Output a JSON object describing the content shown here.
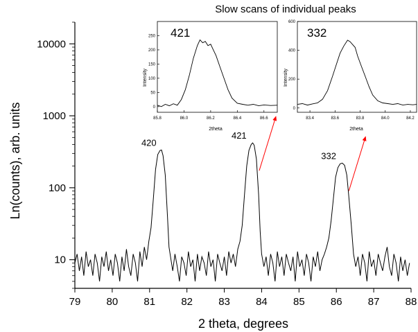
{
  "chart_data": [
    {
      "type": "line",
      "title": "Slow scans of individual peaks",
      "xlabel": "2 theta, degrees",
      "ylabel": "Ln(counts), arb. units",
      "yscale": "log",
      "xlim": [
        79,
        88
      ],
      "ylim": [
        4,
        20000
      ],
      "xticks": [
        "79",
        "80",
        "81",
        "82",
        "83",
        "84",
        "85",
        "86",
        "87",
        "88"
      ],
      "yticks": [
        {
          "value": 10,
          "label": "10"
        },
        {
          "value": 100,
          "label": "100"
        },
        {
          "value": 1000,
          "label": "1000"
        },
        {
          "value": 10000,
          "label": "10000"
        }
      ],
      "grid": false,
      "series": [
        {
          "color": "#000000",
          "points": [
            [
              79.0,
              9
            ],
            [
              79.06,
              12
            ],
            [
              79.12,
              7
            ],
            [
              79.18,
              11
            ],
            [
              79.24,
              6
            ],
            [
              79.3,
              13
            ],
            [
              79.36,
              8
            ],
            [
              79.42,
              10
            ],
            [
              79.48,
              6
            ],
            [
              79.54,
              12
            ],
            [
              79.6,
              9
            ],
            [
              79.66,
              5
            ],
            [
              79.72,
              11
            ],
            [
              79.78,
              8
            ],
            [
              79.84,
              13
            ],
            [
              79.9,
              7
            ],
            [
              79.96,
              10
            ],
            [
              80.02,
              6
            ],
            [
              80.08,
              12
            ],
            [
              80.14,
              9
            ],
            [
              80.2,
              5
            ],
            [
              80.26,
              11
            ],
            [
              80.32,
              7
            ],
            [
              80.38,
              14
            ],
            [
              80.44,
              8
            ],
            [
              80.5,
              6
            ],
            [
              80.56,
              12
            ],
            [
              80.62,
              9
            ],
            [
              80.68,
              5
            ],
            [
              80.74,
              13
            ],
            [
              80.8,
              8
            ],
            [
              80.86,
              15
            ],
            [
              80.92,
              10
            ],
            [
              80.98,
              18
            ],
            [
              81.04,
              28
            ],
            [
              81.1,
              70
            ],
            [
              81.16,
              180
            ],
            [
              81.22,
              290
            ],
            [
              81.28,
              330
            ],
            [
              81.32,
              335
            ],
            [
              81.36,
              280
            ],
            [
              81.42,
              150
            ],
            [
              81.48,
              40
            ],
            [
              81.52,
              15
            ],
            [
              81.56,
              11
            ],
            [
              81.62,
              7
            ],
            [
              81.68,
              12
            ],
            [
              81.74,
              8
            ],
            [
              81.8,
              5
            ],
            [
              81.86,
              11
            ],
            [
              81.92,
              9
            ],
            [
              81.98,
              6
            ],
            [
              82.04,
              13
            ],
            [
              82.1,
              8
            ],
            [
              82.16,
              10
            ],
            [
              82.22,
              5
            ],
            [
              82.28,
              12
            ],
            [
              82.34,
              7
            ],
            [
              82.4,
              11
            ],
            [
              82.46,
              9
            ],
            [
              82.52,
              6
            ],
            [
              82.58,
              13
            ],
            [
              82.64,
              8
            ],
            [
              82.7,
              10
            ],
            [
              82.76,
              5
            ],
            [
              82.82,
              12
            ],
            [
              82.88,
              9
            ],
            [
              82.94,
              7
            ],
            [
              83.0,
              11
            ],
            [
              83.06,
              6
            ],
            [
              83.12,
              13
            ],
            [
              83.18,
              9
            ],
            [
              83.24,
              12
            ],
            [
              83.3,
              8
            ],
            [
              83.36,
              14
            ],
            [
              83.42,
              18
            ],
            [
              83.48,
              30
            ],
            [
              83.54,
              80
            ],
            [
              83.6,
              200
            ],
            [
              83.66,
              330
            ],
            [
              83.72,
              400
            ],
            [
              83.76,
              420
            ],
            [
              83.8,
              390
            ],
            [
              83.86,
              250
            ],
            [
              83.92,
              80
            ],
            [
              83.96,
              25
            ],
            [
              84.0,
              12
            ],
            [
              84.06,
              8
            ],
            [
              84.12,
              11
            ],
            [
              84.18,
              6
            ],
            [
              84.24,
              12
            ],
            [
              84.3,
              9
            ],
            [
              84.36,
              5
            ],
            [
              84.42,
              13
            ],
            [
              84.48,
              8
            ],
            [
              84.54,
              11
            ],
            [
              84.6,
              6
            ],
            [
              84.66,
              12
            ],
            [
              84.72,
              9
            ],
            [
              84.78,
              7
            ],
            [
              84.84,
              11
            ],
            [
              84.9,
              5
            ],
            [
              84.96,
              13
            ],
            [
              85.02,
              8
            ],
            [
              85.08,
              10
            ],
            [
              85.14,
              6
            ],
            [
              85.2,
              12
            ],
            [
              85.26,
              9
            ],
            [
              85.32,
              5
            ],
            [
              85.38,
              11
            ],
            [
              85.44,
              8
            ],
            [
              85.5,
              13
            ],
            [
              85.56,
              7
            ],
            [
              85.62,
              10
            ],
            [
              85.68,
              12
            ],
            [
              85.74,
              15
            ],
            [
              85.8,
              20
            ],
            [
              85.86,
              35
            ],
            [
              85.92,
              70
            ],
            [
              85.98,
              140
            ],
            [
              86.04,
              190
            ],
            [
              86.1,
              215
            ],
            [
              86.16,
              220
            ],
            [
              86.22,
              205
            ],
            [
              86.28,
              150
            ],
            [
              86.34,
              70
            ],
            [
              86.4,
              30
            ],
            [
              86.46,
              12
            ],
            [
              86.52,
              8
            ],
            [
              86.58,
              11
            ],
            [
              86.64,
              6
            ],
            [
              86.7,
              12
            ],
            [
              86.76,
              9
            ],
            [
              86.82,
              5
            ],
            [
              86.88,
              13
            ],
            [
              86.94,
              8
            ],
            [
              87.0,
              10
            ],
            [
              87.06,
              6
            ],
            [
              87.12,
              12
            ],
            [
              87.18,
              9
            ],
            [
              87.24,
              7
            ],
            [
              87.3,
              11
            ],
            [
              87.36,
              15
            ],
            [
              87.42,
              8
            ],
            [
              87.48,
              6
            ],
            [
              87.54,
              12
            ],
            [
              87.6,
              9
            ],
            [
              87.66,
              5
            ],
            [
              87.72,
              11
            ],
            [
              87.78,
              7
            ],
            [
              87.84,
              10
            ],
            [
              87.9,
              6
            ],
            [
              87.96,
              9
            ]
          ]
        }
      ],
      "annotations": [
        {
          "text": "420",
          "x": 81.3,
          "y": 335,
          "color": "#ff0000"
        },
        {
          "text": "421",
          "x": 83.75,
          "y": 420,
          "color": "#ff0000",
          "arrow": true
        },
        {
          "text": "332",
          "x": 86.15,
          "y": 220,
          "color": "#ff0000",
          "arrow": true
        }
      ]
    },
    {
      "type": "line",
      "panel_label": "421",
      "xlabel": "2theta",
      "ylabel": "Intensity",
      "xlim": [
        85.8,
        86.7
      ],
      "ylim": [
        -20,
        300
      ],
      "xticks": [
        {
          "value": 85.8,
          "label": "85.8"
        },
        {
          "value": 86.0,
          "label": "86.0"
        },
        {
          "value": 86.2,
          "label": "86.2"
        },
        {
          "value": 86.4,
          "label": "86.4"
        },
        {
          "value": 86.6,
          "label": "86.6"
        }
      ],
      "yticks": [
        {
          "value": 0,
          "label": "0"
        },
        {
          "value": 50,
          "label": "50"
        },
        {
          "value": 100,
          "label": "100"
        },
        {
          "value": 150,
          "label": "150"
        },
        {
          "value": 200,
          "label": "200"
        },
        {
          "value": 250,
          "label": "250"
        }
      ],
      "series": [
        {
          "color": "#000000",
          "points": [
            [
              85.8,
              5
            ],
            [
              85.83,
              0
            ],
            [
              85.86,
              8
            ],
            [
              85.89,
              3
            ],
            [
              85.92,
              10
            ],
            [
              85.95,
              5
            ],
            [
              85.98,
              25
            ],
            [
              86.01,
              60
            ],
            [
              86.04,
              110
            ],
            [
              86.07,
              170
            ],
            [
              86.1,
              215
            ],
            [
              86.12,
              235
            ],
            [
              86.14,
              225
            ],
            [
              86.16,
              230
            ],
            [
              86.18,
              215
            ],
            [
              86.2,
              220
            ],
            [
              86.22,
              200
            ],
            [
              86.24,
              180
            ],
            [
              86.27,
              140
            ],
            [
              86.3,
              100
            ],
            [
              86.33,
              60
            ],
            [
              86.36,
              30
            ],
            [
              86.4,
              12
            ],
            [
              86.44,
              8
            ],
            [
              86.48,
              5
            ],
            [
              86.52,
              8
            ],
            [
              86.56,
              3
            ],
            [
              86.6,
              6
            ],
            [
              86.65,
              4
            ],
            [
              86.7,
              5
            ]
          ]
        }
      ]
    },
    {
      "type": "line",
      "panel_label": "332",
      "xlabel": "2theta",
      "ylabel": "Intensity",
      "xlim": [
        83.3,
        84.25
      ],
      "ylim": [
        -30,
        600
      ],
      "xticks": [
        {
          "value": 83.4,
          "label": "83.4"
        },
        {
          "value": 83.6,
          "label": "83.6"
        },
        {
          "value": 83.8,
          "label": "83.8"
        },
        {
          "value": 84.0,
          "label": "84.0"
        },
        {
          "value": 84.2,
          "label": "84.2"
        }
      ],
      "yticks": [
        {
          "value": 0,
          "label": "0"
        },
        {
          "value": 200,
          "label": "200"
        },
        {
          "value": 400,
          "label": "400"
        },
        {
          "value": 600,
          "label": "600"
        }
      ],
      "series": [
        {
          "color": "#000000",
          "points": [
            [
              83.3,
              25
            ],
            [
              83.34,
              30
            ],
            [
              83.38,
              20
            ],
            [
              83.42,
              28
            ],
            [
              83.46,
              35
            ],
            [
              83.5,
              60
            ],
            [
              83.54,
              120
            ],
            [
              83.58,
              220
            ],
            [
              83.61,
              300
            ],
            [
              83.64,
              380
            ],
            [
              83.67,
              430
            ],
            [
              83.7,
              470
            ],
            [
              83.72,
              460
            ],
            [
              83.74,
              440
            ],
            [
              83.76,
              420
            ],
            [
              83.78,
              360
            ],
            [
              83.81,
              290
            ],
            [
              83.84,
              220
            ],
            [
              83.87,
              150
            ],
            [
              83.9,
              90
            ],
            [
              83.94,
              50
            ],
            [
              83.98,
              35
            ],
            [
              84.02,
              30
            ],
            [
              84.06,
              25
            ],
            [
              84.1,
              30
            ],
            [
              84.14,
              20
            ],
            [
              84.18,
              25
            ],
            [
              84.22,
              22
            ],
            [
              84.25,
              25
            ]
          ]
        }
      ]
    }
  ]
}
